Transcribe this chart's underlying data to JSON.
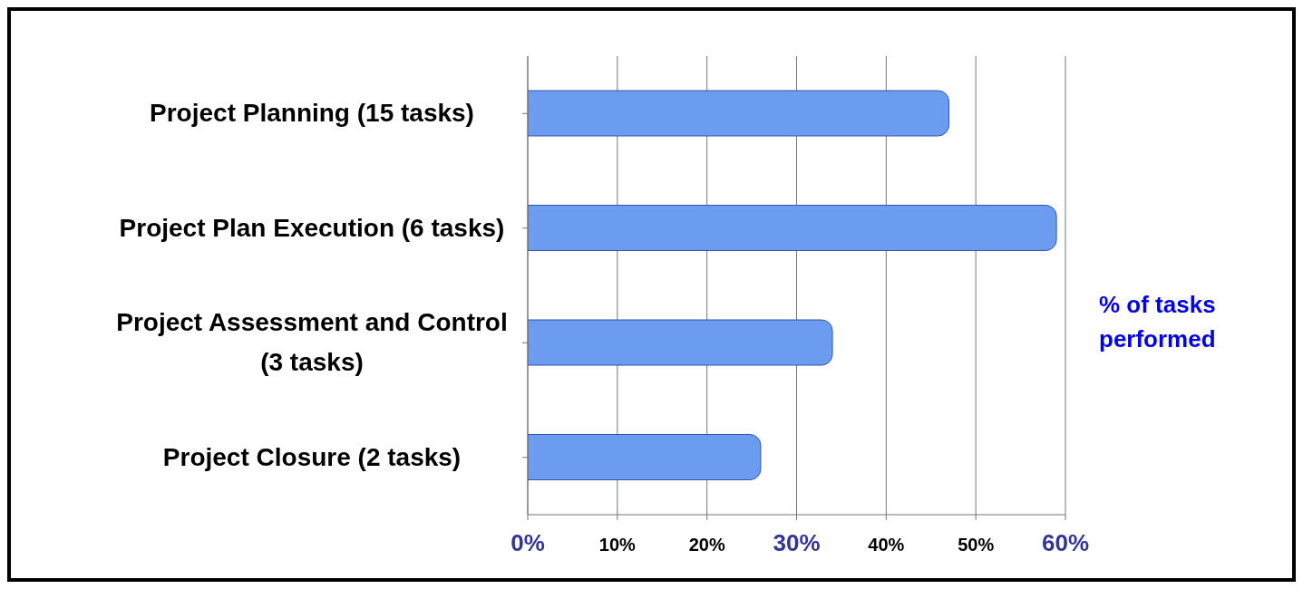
{
  "chart_data": {
    "type": "bar",
    "orientation": "horizontal",
    "xlabel": "% of tasks performed",
    "categories": [
      "Project Planning (15 tasks)",
      "Project Plan Execution (6 tasks)",
      "Project Assessment and Control (3 tasks)",
      "Project Closure (2 tasks)"
    ],
    "values": [
      47,
      59,
      34,
      26
    ],
    "color": "#6b9cf0",
    "xlim": [
      0,
      60
    ],
    "xticks": [
      {
        "value": 0,
        "label": "0%"
      },
      {
        "value": 10,
        "label": "10%"
      },
      {
        "value": 20,
        "label": "20%"
      },
      {
        "value": 30,
        "label": "30%"
      },
      {
        "value": 40,
        "label": "40%"
      },
      {
        "value": 50,
        "label": "50%"
      },
      {
        "value": 60,
        "label": "60%"
      }
    ],
    "grid": "x"
  }
}
